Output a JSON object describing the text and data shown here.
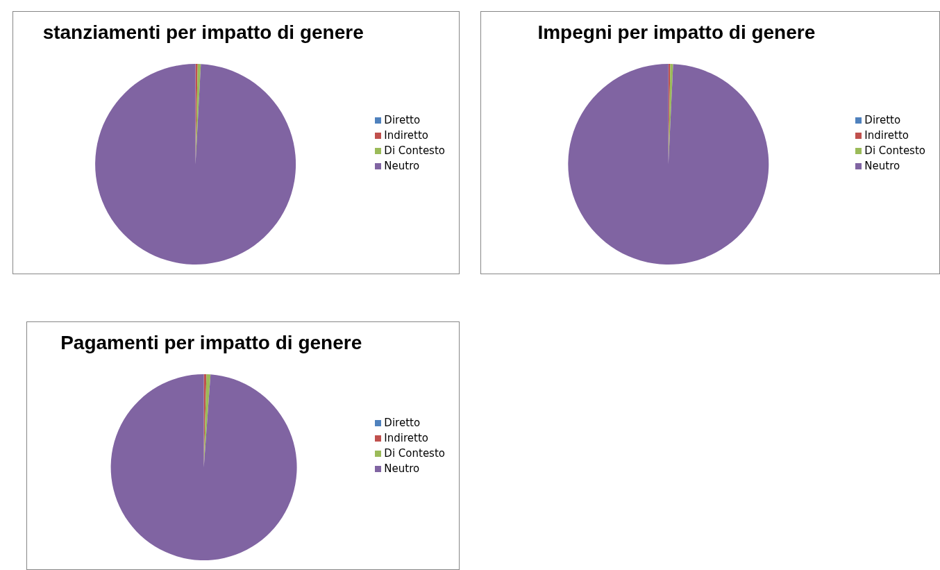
{
  "chart_data": [
    {
      "type": "pie",
      "title": "stanziamenti per impatto di genere",
      "categories": [
        "Diretto",
        "Indiretto",
        "Di Contesto",
        "Neutro"
      ],
      "values": [
        null,
        0.35,
        0.5,
        99.15
      ],
      "colors": [
        "#4f81bd",
        "#c0504d",
        "#9bbb59",
        "#8064a2"
      ],
      "legend": "right"
    },
    {
      "type": "pie",
      "title": "Impegni per impatto di genere",
      "categories": [
        "Diretto",
        "Indiretto",
        "Di Contesto",
        "Neutro"
      ],
      "values": [
        null,
        0.3,
        0.45,
        99.25
      ],
      "colors": [
        "#4f81bd",
        "#c0504d",
        "#9bbb59",
        "#8064a2"
      ],
      "legend": "right"
    },
    {
      "type": "pie",
      "title": "Pagamenti per impatto di genere",
      "categories": [
        "Diretto",
        "Indiretto",
        "Di Contesto",
        "Neutro"
      ],
      "values": [
        null,
        0.45,
        0.7,
        98.85
      ],
      "colors": [
        "#4f81bd",
        "#c0504d",
        "#9bbb59",
        "#8064a2"
      ],
      "legend": "right"
    }
  ]
}
